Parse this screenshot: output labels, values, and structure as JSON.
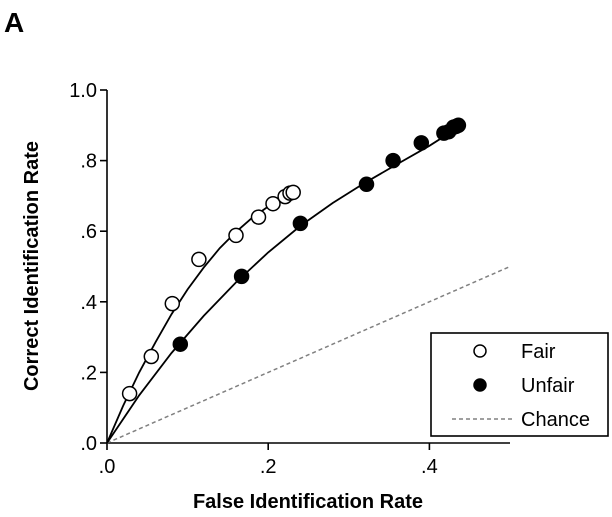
{
  "panel_label": "A",
  "chart_data": {
    "type": "scatter",
    "xlabel": "False Identification Rate",
    "ylabel": "Correct Identification Rate",
    "xlim": [
      0,
      0.5
    ],
    "ylim": [
      0,
      1.0
    ],
    "x_ticks": [
      {
        "value": 0.0,
        "label": ".0"
      },
      {
        "value": 0.2,
        "label": ".2"
      },
      {
        "value": 0.4,
        "label": ".4"
      }
    ],
    "y_ticks": [
      {
        "value": 0.0,
        "label": ".0"
      },
      {
        "value": 0.2,
        "label": ".2"
      },
      {
        "value": 0.4,
        "label": ".4"
      },
      {
        "value": 0.6,
        "label": ".6"
      },
      {
        "value": 0.8,
        "label": ".8"
      },
      {
        "value": 1.0,
        "label": "1.0"
      }
    ],
    "legend_position": "bottom-right",
    "series": [
      {
        "name": "Fair",
        "marker": "open-circle",
        "color": "#000000",
        "points": [
          [
            0.028,
            0.14
          ],
          [
            0.055,
            0.245
          ],
          [
            0.081,
            0.395
          ],
          [
            0.114,
            0.52
          ],
          [
            0.16,
            0.588
          ],
          [
            0.188,
            0.64
          ],
          [
            0.206,
            0.678
          ],
          [
            0.221,
            0.698
          ],
          [
            0.227,
            0.708
          ],
          [
            0.231,
            0.71
          ]
        ],
        "fit_curve": [
          [
            0.0,
            0.0
          ],
          [
            0.02,
            0.105
          ],
          [
            0.04,
            0.2
          ],
          [
            0.06,
            0.285
          ],
          [
            0.08,
            0.365
          ],
          [
            0.1,
            0.435
          ],
          [
            0.12,
            0.497
          ],
          [
            0.14,
            0.552
          ],
          [
            0.16,
            0.598
          ],
          [
            0.18,
            0.638
          ],
          [
            0.2,
            0.67
          ],
          [
            0.215,
            0.692
          ],
          [
            0.23,
            0.712
          ]
        ]
      },
      {
        "name": "Unfair",
        "marker": "filled-circle",
        "color": "#000000",
        "points": [
          [
            0.091,
            0.28
          ],
          [
            0.167,
            0.472
          ],
          [
            0.24,
            0.622
          ],
          [
            0.322,
            0.733
          ],
          [
            0.355,
            0.8
          ],
          [
            0.39,
            0.85
          ],
          [
            0.418,
            0.878
          ],
          [
            0.424,
            0.882
          ],
          [
            0.43,
            0.895
          ],
          [
            0.433,
            0.897
          ],
          [
            0.436,
            0.9
          ]
        ],
        "fit_curve": [
          [
            0.0,
            0.0
          ],
          [
            0.04,
            0.135
          ],
          [
            0.08,
            0.255
          ],
          [
            0.12,
            0.36
          ],
          [
            0.16,
            0.455
          ],
          [
            0.2,
            0.54
          ],
          [
            0.24,
            0.615
          ],
          [
            0.28,
            0.68
          ],
          [
            0.32,
            0.737
          ],
          [
            0.36,
            0.79
          ],
          [
            0.4,
            0.842
          ],
          [
            0.44,
            0.9
          ]
        ]
      },
      {
        "name": "Chance",
        "marker": "dashed-line",
        "color": "#808080",
        "points": [
          [
            0.0,
            0.0
          ],
          [
            0.5,
            0.5
          ]
        ]
      }
    ]
  }
}
